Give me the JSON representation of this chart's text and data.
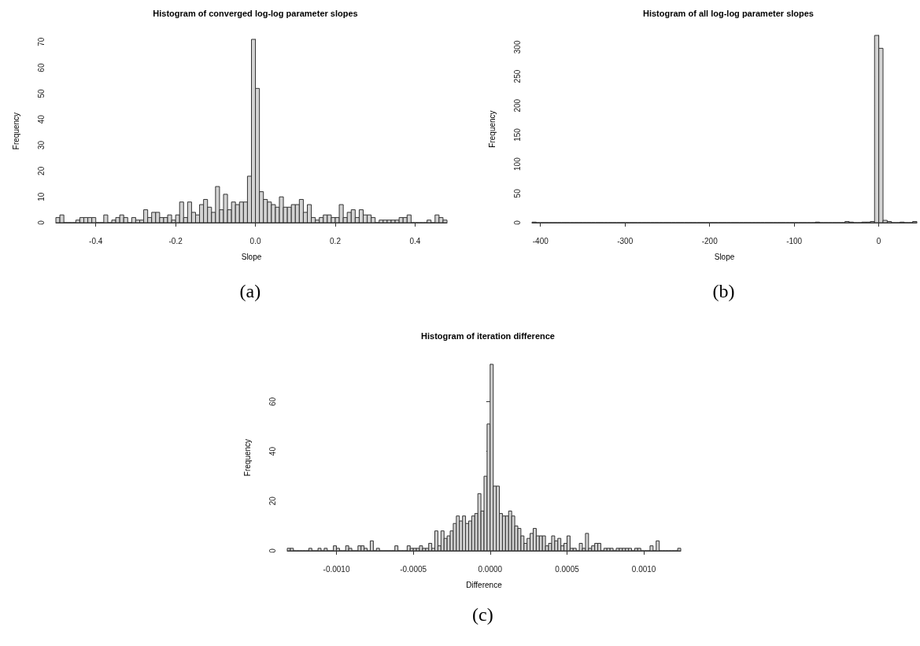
{
  "chart_data": [
    {
      "type": "histogram",
      "title": "Histogram of converged log-log parameter slopes",
      "xlabel": "Slope",
      "ylabel": "Frequency",
      "color": "#d3d3d3",
      "annotations": [
        "(a)"
      ],
      "bins": [
        -0.5,
        -0.49,
        -0.48,
        -0.47,
        -0.46,
        -0.45,
        -0.44,
        -0.43,
        -0.42,
        -0.41,
        -0.4,
        -0.39,
        -0.38,
        -0.37,
        -0.36,
        -0.35,
        -0.34,
        -0.33,
        -0.32,
        -0.31,
        -0.3,
        -0.29,
        -0.28,
        -0.27,
        -0.26,
        -0.25,
        -0.24,
        -0.23,
        -0.22,
        -0.21,
        -0.2,
        -0.19,
        -0.18,
        -0.17,
        -0.16,
        -0.15,
        -0.14,
        -0.13,
        -0.12,
        -0.11,
        -0.1,
        -0.09,
        -0.08,
        -0.07,
        -0.06,
        -0.05,
        -0.04,
        -0.03,
        -0.02,
        -0.01,
        0,
        0.01,
        0.02,
        0.03,
        0.04,
        0.05,
        0.06,
        0.07,
        0.08,
        0.09,
        0.1,
        0.11,
        0.12,
        0.13,
        0.14,
        0.15,
        0.16,
        0.17,
        0.18,
        0.19,
        0.2,
        0.21,
        0.22,
        0.23,
        0.24,
        0.25,
        0.26,
        0.27,
        0.28,
        0.29,
        0.3,
        0.31,
        0.32,
        0.33,
        0.34,
        0.35,
        0.36,
        0.37,
        0.38,
        0.39,
        0.4,
        0.41,
        0.42,
        0.43,
        0.44,
        0.45,
        0.46,
        0.47,
        0.48
      ],
      "values": [
        2,
        3,
        0,
        0,
        0,
        1,
        2,
        2,
        2,
        2,
        0,
        0,
        3,
        0,
        1,
        2,
        3,
        2,
        0,
        2,
        1,
        1,
        5,
        2,
        4,
        4,
        2,
        2,
        3,
        1,
        3,
        8,
        2,
        8,
        4,
        3,
        7,
        9,
        6,
        4,
        14,
        5,
        11,
        5,
        8,
        7,
        8,
        8,
        18,
        71,
        52,
        12,
        9,
        8,
        7,
        6,
        10,
        6,
        6,
        7,
        7,
        9,
        4,
        7,
        2,
        1,
        2,
        3,
        3,
        2,
        2,
        7,
        2,
        4,
        5,
        2,
        5,
        3,
        3,
        2,
        0,
        1,
        1,
        1,
        1,
        1,
        2,
        2,
        3,
        0,
        0,
        0,
        0,
        1,
        0,
        3,
        2,
        1
      ],
      "xlim": [
        -0.5,
        0.48
      ],
      "xticks": [
        -0.4,
        -0.2,
        {
          "value": 0,
          "label": "0.0"
        },
        0.2,
        0.4
      ],
      "ylim": [
        0,
        71
      ],
      "yticks": [
        0,
        10,
        20,
        30,
        40,
        50,
        60,
        70
      ]
    },
    {
      "type": "histogram",
      "title": "Histogram of all log-log parameter slopes",
      "xlabel": "Slope",
      "ylabel": "Frequency",
      "color": "#d3d3d3",
      "annotations": [
        "(b)"
      ],
      "bins": [
        -410,
        -405,
        -400,
        -395,
        -390,
        -385,
        -380,
        -375,
        -370,
        -365,
        -360,
        -355,
        -350,
        -345,
        -340,
        -335,
        -330,
        -325,
        -320,
        -315,
        -310,
        -305,
        -300,
        -295,
        -290,
        -285,
        -280,
        -275,
        -270,
        -265,
        -260,
        -255,
        -250,
        -245,
        -240,
        -235,
        -230,
        -225,
        -220,
        -215,
        -210,
        -205,
        -200,
        -195,
        -190,
        -185,
        -180,
        -175,
        -170,
        -165,
        -160,
        -155,
        -150,
        -145,
        -140,
        -135,
        -130,
        -125,
        -120,
        -115,
        -110,
        -105,
        -100,
        -95,
        -90,
        -85,
        -80,
        -75,
        -70,
        -65,
        -60,
        -55,
        -50,
        -45,
        -40,
        -35,
        -30,
        -25,
        -20,
        -15,
        -10,
        -5,
        0,
        5,
        10,
        15,
        20,
        25,
        30,
        35,
        40,
        45
      ],
      "values": [
        1,
        0,
        0,
        0,
        0,
        0,
        0,
        0,
        0,
        0,
        0,
        0,
        0,
        0,
        0,
        0,
        0,
        0,
        0,
        0,
        0,
        0,
        0,
        0,
        0,
        0,
        0,
        0,
        0,
        0,
        0,
        0,
        0,
        0,
        0,
        0,
        0,
        0,
        0,
        0,
        0,
        0,
        0,
        0,
        0,
        0,
        0,
        0,
        0,
        0,
        0,
        0,
        0,
        0,
        0,
        0,
        0,
        0,
        0,
        0,
        0,
        0,
        0,
        0,
        0,
        0,
        0,
        1,
        0,
        0,
        0,
        0,
        0,
        0,
        2,
        1,
        0,
        0,
        1,
        1,
        2,
        320,
        298,
        4,
        2,
        0,
        0,
        1,
        0,
        0,
        2
      ],
      "xlim": [
        -410,
        45
      ],
      "xticks": [
        -400,
        -300,
        -200,
        -100,
        0
      ],
      "ylim": [
        0,
        320
      ],
      "yticks": [
        0,
        50,
        100,
        150,
        200,
        250,
        300
      ]
    },
    {
      "type": "histogram",
      "title": "Histogram of iteration difference",
      "xlabel": "Difference",
      "ylabel": "Frequency",
      "color": "#d3d3d3",
      "annotations": [
        "(c)"
      ],
      "bins": [
        -0.00132,
        -0.0013,
        -0.00128,
        -0.00126,
        -0.00124,
        -0.00122,
        -0.0012,
        -0.00118,
        -0.00116,
        -0.00114,
        -0.00112,
        -0.0011,
        -0.00108,
        -0.00106,
        -0.00104,
        -0.00102,
        -0.001,
        -0.00098,
        -0.00096,
        -0.00094,
        -0.00092,
        -0.0009,
        -0.00088,
        -0.00086,
        -0.00084,
        -0.00082,
        -0.0008,
        -0.00078,
        -0.00076,
        -0.00074,
        -0.00072,
        -0.0007,
        -0.00068,
        -0.00066,
        -0.00064,
        -0.00062,
        -0.0006,
        -0.00058,
        -0.00056,
        -0.00054,
        -0.00052,
        -0.0005,
        -0.00048,
        -0.00046,
        -0.00044,
        -0.00042,
        -0.0004,
        -0.00038,
        -0.00036,
        -0.00034,
        -0.00032,
        -0.0003,
        -0.00028,
        -0.00026,
        -0.00024,
        -0.00022,
        -0.0002,
        -0.00018,
        -0.00016,
        -0.00014,
        -0.00012,
        -0.0001,
        -8e-05,
        -6e-05,
        -4e-05,
        -2e-05,
        0,
        2e-05,
        4e-05,
        6e-05,
        8e-05,
        0.0001,
        0.00012,
        0.00014,
        0.00016,
        0.00018,
        0.0002,
        0.00022,
        0.00024,
        0.00026,
        0.00028,
        0.0003,
        0.00032,
        0.00034,
        0.00036,
        0.00038,
        0.0004,
        0.00042,
        0.00044,
        0.00046,
        0.00048,
        0.0005,
        0.00052,
        0.00054,
        0.00056,
        0.00058,
        0.0006,
        0.00062,
        0.00064,
        0.00066,
        0.00068,
        0.0007,
        0.00072,
        0.00074,
        0.00076,
        0.00078,
        0.0008,
        0.00082,
        0.00084,
        0.00086,
        0.00088,
        0.0009,
        0.00092,
        0.00094,
        0.00096,
        0.00098,
        0.001,
        0.00102,
        0.00104,
        0.00106,
        0.00108,
        0.0011,
        0.00112,
        0.00114,
        0.00116,
        0.00118,
        0.0012,
        0.00122,
        0.00124
      ],
      "values": [
        1,
        1,
        0,
        0,
        0,
        0,
        0,
        1,
        0,
        0,
        1,
        0,
        1,
        0,
        0,
        2,
        1,
        0,
        0,
        2,
        1,
        0,
        0,
        2,
        2,
        1,
        0,
        4,
        0,
        1,
        0,
        0,
        0,
        0,
        0,
        2,
        0,
        0,
        0,
        2,
        1,
        1,
        1,
        2,
        1,
        1,
        3,
        1,
        8,
        2,
        8,
        5,
        6,
        8,
        11,
        14,
        12,
        14,
        11,
        12,
        14,
        15,
        23,
        16,
        30,
        51,
        75,
        26,
        26,
        15,
        14,
        14,
        16,
        14,
        10,
        9,
        6,
        3,
        5,
        7,
        9,
        6,
        6,
        6,
        2,
        3,
        6,
        4,
        5,
        2,
        3,
        6,
        1,
        1,
        0,
        3,
        1,
        7,
        1,
        2,
        3,
        3,
        0,
        1,
        1,
        1,
        0,
        1,
        1,
        1,
        1,
        1,
        0,
        1,
        1,
        0,
        0,
        0,
        2,
        0,
        4,
        0,
        0,
        0,
        0,
        0,
        0,
        1
      ],
      "xlim": [
        -0.00132,
        0.00124
      ],
      "xticks": [
        {
          "value": -0.001,
          "label": "-0.0010"
        },
        {
          "value": -0.0005,
          "label": "-0.0005"
        },
        {
          "value": 0,
          "label": "0.0000"
        },
        {
          "value": 0.0005,
          "label": "0.0005"
        },
        {
          "value": 0.001,
          "label": "0.0010"
        }
      ],
      "ylim": [
        0,
        75
      ],
      "yticks": [
        0,
        20,
        40,
        60
      ]
    }
  ]
}
